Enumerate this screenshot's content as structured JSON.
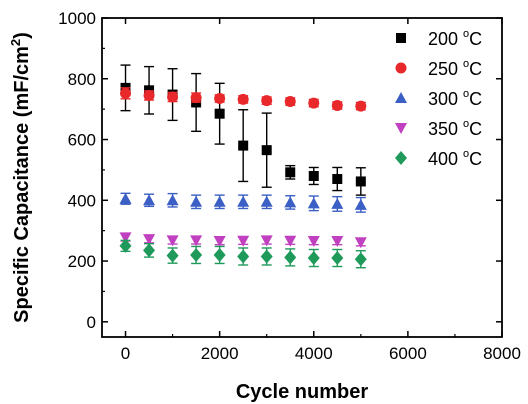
{
  "chart_data": {
    "type": "scatter",
    "xlabel": "Cycle number",
    "ylabel": "Specific Capacitance (mF/cm",
    "ylabel_sup": "2",
    "ylabel_end": ")",
    "xlim": [
      -500,
      8000
    ],
    "ylim": [
      -50,
      1000
    ],
    "x_ticks": [
      0,
      2000,
      4000,
      6000,
      8000
    ],
    "x_tick_labels": [
      "0",
      "2000",
      "4000",
      "6000",
      "8000"
    ],
    "y_ticks": [
      0,
      200,
      400,
      600,
      800,
      1000
    ],
    "y_tick_labels": [
      "0",
      "200",
      "400",
      "600",
      "800",
      "1000"
    ],
    "grid": false,
    "legend_position": "top-right",
    "x": [
      0,
      500,
      1000,
      1500,
      2000,
      2500,
      3000,
      3500,
      4000,
      4500,
      5000
    ],
    "series": [
      {
        "name": "200",
        "unit": "C",
        "unit_sup": "o",
        "color": "#000000",
        "marker": "square",
        "values": [
          770,
          762,
          748,
          722,
          685,
          580,
          565,
          492,
          480,
          470,
          462
        ],
        "errors": [
          75,
          78,
          85,
          95,
          100,
          118,
          122,
          22,
          28,
          38,
          45
        ]
      },
      {
        "name": "250",
        "unit": "C",
        "unit_sup": "o",
        "color": "#e8282a",
        "marker": "circle",
        "values": [
          752,
          745,
          740,
          738,
          735,
          732,
          728,
          725,
          720,
          712,
          710
        ],
        "errors": [
          18,
          15,
          15,
          15,
          12,
          12,
          12,
          12,
          12,
          12,
          12
        ]
      },
      {
        "name": "300",
        "unit": "C",
        "unit_sup": "o",
        "color": "#3b5fc4",
        "marker": "triangle-up",
        "values": [
          405,
          400,
          400,
          395,
          395,
          395,
          395,
          393,
          390,
          388,
          385
        ],
        "errors": [
          18,
          20,
          22,
          22,
          22,
          22,
          22,
          22,
          24,
          24,
          24
        ]
      },
      {
        "name": "350",
        "unit": "C",
        "unit_sup": "o",
        "color": "#c040c0",
        "marker": "triangle-down",
        "values": [
          278,
          272,
          268,
          268,
          266,
          267,
          268,
          267,
          266,
          266,
          262
        ],
        "errors": [
          12,
          12,
          12,
          12,
          12,
          12,
          12,
          12,
          12,
          12,
          12
        ]
      },
      {
        "name": "400",
        "unit": "C",
        "unit_sup": "o",
        "color": "#1f9a5a",
        "marker": "diamond",
        "values": [
          250,
          235,
          218,
          220,
          220,
          215,
          215,
          212,
          210,
          210,
          206
        ],
        "errors": [
          18,
          22,
          25,
          28,
          28,
          28,
          28,
          28,
          28,
          28,
          28
        ]
      }
    ]
  }
}
